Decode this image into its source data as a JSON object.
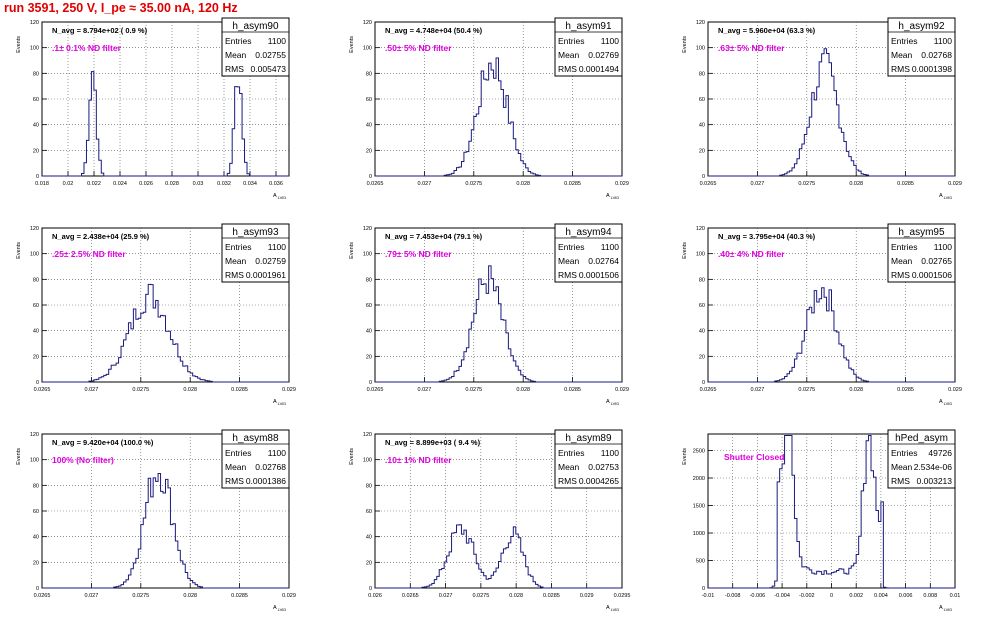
{
  "page_title": "run 3591,   250 V, I_pe ≈ 35.00 nA, 120 Hz",
  "stats_labels": {
    "entries": "Entries",
    "mean": "Mean",
    "rms": "RMS"
  },
  "y_axis_label": "Events",
  "x_axis_label": "A",
  "x_axis_subscript": "LVID",
  "colors": {
    "histogram": "#1a1a80",
    "annotation": "#e000e0",
    "run_title": "#e00000",
    "grid": "#555555"
  },
  "chart_data": [
    {
      "type": "histogram",
      "name": "h_asym90",
      "n_avg": "N_avg = 8.794e+02 ( 0.9 %)",
      "filter": ".1± 0.1% ND filter",
      "entries": "1100",
      "mean": "0.02755",
      "rms": "0.005473",
      "xlim": [
        0.018,
        0.037
      ],
      "ylim": [
        0,
        120
      ],
      "xticks": [
        "0.018",
        "0.02",
        "0.022",
        "0.024",
        "0.026",
        "0.028",
        "0.03",
        "0.032",
        "0.034",
        "0.036"
      ],
      "yticks": [
        "0",
        "20",
        "40",
        "60",
        "80",
        "100",
        "120"
      ],
      "peaks": [
        {
          "center": 0.0219,
          "sigma": 0.00028,
          "height": 83
        },
        {
          "center": 0.0331,
          "sigma": 0.00028,
          "height": 82
        }
      ]
    },
    {
      "type": "histogram",
      "name": "h_asym91",
      "n_avg": "N_avg = 4.748e+04 (50.4 %)",
      "filter": ".50± 5% ND filter",
      "entries": "1100",
      "mean": "0.02769",
      "rms": "0.0001494",
      "xlim": [
        0.0265,
        0.029
      ],
      "ylim": [
        0,
        120
      ],
      "xticks": [
        "0.0265",
        "0.027",
        "0.0275",
        "0.028",
        "0.0285",
        "0.029"
      ],
      "yticks": [
        "0",
        "20",
        "40",
        "60",
        "80",
        "100",
        "120"
      ],
      "peaks": [
        {
          "center": 0.02769,
          "sigma": 0.00015,
          "height": 88
        }
      ]
    },
    {
      "type": "histogram",
      "name": "h_asym92",
      "n_avg": "N_avg = 5.960e+04 (63.3 %)",
      "filter": ".63± 5% ND filter",
      "entries": "1100",
      "mean": "0.02768",
      "rms": "0.0001398",
      "xlim": [
        0.0265,
        0.029
      ],
      "ylim": [
        0,
        120
      ],
      "xticks": [
        "0.0265",
        "0.027",
        "0.0275",
        "0.028",
        "0.0285",
        "0.029"
      ],
      "yticks": [
        "0",
        "20",
        "40",
        "60",
        "80",
        "100",
        "120"
      ],
      "peaks": [
        {
          "center": 0.02768,
          "sigma": 0.00014,
          "height": 85
        }
      ]
    },
    {
      "type": "histogram",
      "name": "h_asym93",
      "n_avg": "N_avg = 2.438e+04 (25.9 %)",
      "filter": ".25± 2.5% ND filter",
      "entries": "1100",
      "mean": "0.02759",
      "rms": "0.0001961",
      "xlim": [
        0.0265,
        0.029
      ],
      "ylim": [
        0,
        120
      ],
      "xticks": [
        "0.0265",
        "0.027",
        "0.0275",
        "0.028",
        "0.0285",
        "0.029"
      ],
      "yticks": [
        "0",
        "20",
        "40",
        "60",
        "80",
        "100",
        "120"
      ],
      "peaks": [
        {
          "center": 0.02759,
          "sigma": 0.0002,
          "height": 68
        }
      ]
    },
    {
      "type": "histogram",
      "name": "h_asym94",
      "n_avg": "N_avg = 7.453e+04 (79.1 %)",
      "filter": ".79± 5% ND filter",
      "entries": "1100",
      "mean": "0.02764",
      "rms": "0.0001506",
      "xlim": [
        0.0265,
        0.029
      ],
      "ylim": [
        0,
        120
      ],
      "xticks": [
        "0.0265",
        "0.027",
        "0.0275",
        "0.028",
        "0.0285",
        "0.029"
      ],
      "yticks": [
        "0",
        "20",
        "40",
        "60",
        "80",
        "100",
        "120"
      ],
      "peaks": [
        {
          "center": 0.02764,
          "sigma": 0.00015,
          "height": 80
        }
      ]
    },
    {
      "type": "histogram",
      "name": "h_asym95",
      "n_avg": "N_avg = 3.795e+04 (40.3 %)",
      "filter": ".40± 4% ND filter",
      "entries": "1100",
      "mean": "0.02765",
      "rms": "0.0001506",
      "xlim": [
        0.0265,
        0.029
      ],
      "ylim": [
        0,
        120
      ],
      "xticks": [
        "0.0265",
        "0.027",
        "0.0275",
        "0.028",
        "0.0285",
        "0.029"
      ],
      "yticks": [
        "0",
        "20",
        "40",
        "60",
        "80",
        "100",
        "120"
      ],
      "peaks": [
        {
          "center": 0.02765,
          "sigma": 0.00015,
          "height": 73
        }
      ]
    },
    {
      "type": "histogram",
      "name": "h_asym88",
      "n_avg": "N_avg = 9.420e+04 (100.0 %)",
      "filter": "100% (No filter)",
      "entries": "1100",
      "mean": "0.02768",
      "rms": "0.0001386",
      "xlim": [
        0.0265,
        0.029
      ],
      "ylim": [
        0,
        120
      ],
      "xticks": [
        "0.0265",
        "0.027",
        "0.0275",
        "0.028",
        "0.0285",
        "0.029"
      ],
      "yticks": [
        "0",
        "20",
        "40",
        "60",
        "80",
        "100",
        "120"
      ],
      "peaks": [
        {
          "center": 0.02768,
          "sigma": 0.00014,
          "height": 93
        }
      ]
    },
    {
      "type": "histogram",
      "name": "h_asym89",
      "n_avg": "N_avg = 8.899e+03 ( 9.4 %)",
      "filter": ".10± 1% ND filter",
      "entries": "1100",
      "mean": "0.02753",
      "rms": "0.0004265",
      "xlim": [
        0.026,
        0.0295
      ],
      "ylim": [
        0,
        120
      ],
      "xticks": [
        "0.026",
        "0.0265",
        "0.027",
        "0.0275",
        "0.028",
        "0.0285",
        "0.029",
        "0.0295"
      ],
      "yticks": [
        "0",
        "20",
        "40",
        "60",
        "80",
        "100",
        "120"
      ],
      "peaks": [
        {
          "center": 0.02722,
          "sigma": 0.00018,
          "height": 46
        },
        {
          "center": 0.02795,
          "sigma": 0.00015,
          "height": 42
        }
      ]
    },
    {
      "type": "histogram",
      "name": "hPed_asym",
      "n_avg": "",
      "filter": "Shutter Closed",
      "entries": "49726",
      "mean": "2.534e-06",
      "rms": "0.003213",
      "xlim": [
        -0.01,
        0.01
      ],
      "ylim": [
        0,
        2800
      ],
      "xticks": [
        "-0.01",
        "-0.008",
        "-0.006",
        "-0.004",
        "-0.002",
        "0",
        "0.002",
        "0.004",
        "0.006",
        "0.008",
        "0.01"
      ],
      "yticks": [
        "0",
        "500",
        "1000",
        "1500",
        "2000",
        "2500"
      ],
      "peaks": [
        {
          "center": -0.0035,
          "sigma": 0.0004,
          "height": 2600
        },
        {
          "center": 0.003,
          "sigma": 0.0004,
          "height": 2400
        }
      ],
      "baseline": 300
    }
  ]
}
